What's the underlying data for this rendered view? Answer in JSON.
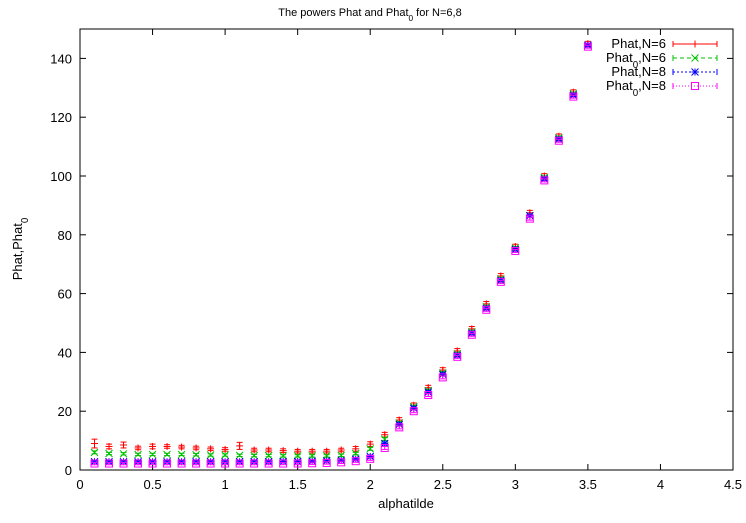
{
  "chart_data": {
    "type": "scatter",
    "title": "The powers Phat and Phat_0 for N=6,8",
    "xlabel": "alphatilde",
    "ylabel": "Phat,Phat_0",
    "xlim": [
      0,
      4.5
    ],
    "ylim": [
      0,
      150
    ],
    "xticks": [
      "0",
      "0.5",
      "1",
      "1.5",
      "2",
      "2.5",
      "3",
      "3.5",
      "4",
      "4.5"
    ],
    "yticks": [
      "0",
      "20",
      "40",
      "60",
      "80",
      "100",
      "120",
      "140"
    ],
    "grid": false,
    "legend_position": "top-right",
    "x": [
      0.1,
      0.2,
      0.3,
      0.4,
      0.5,
      0.6,
      0.7,
      0.8,
      0.9,
      1.0,
      1.1,
      1.2,
      1.3,
      1.4,
      1.5,
      1.6,
      1.7,
      1.8,
      1.9,
      2.0,
      2.1,
      2.2,
      2.3,
      2.4,
      2.5,
      2.6,
      2.7,
      2.8,
      2.9,
      3.0,
      3.1,
      3.2,
      3.3,
      3.4,
      3.5
    ],
    "series": [
      {
        "name": "Phat,N=6",
        "color": "#ff0000",
        "marker": "plus",
        "values": [
          9.0,
          8.0,
          8.5,
          7.5,
          8.0,
          8.0,
          7.8,
          7.5,
          7.2,
          7.0,
          8.2,
          6.8,
          6.8,
          6.6,
          6.4,
          6.4,
          6.4,
          6.8,
          7.2,
          8.8,
          12.0,
          17.0,
          22.0,
          28.0,
          34.0,
          40.5,
          48.0,
          56.5,
          66.0,
          76.0,
          87.5,
          100.0,
          113.5,
          128.5,
          145.0
        ],
        "errors": [
          1.5,
          0.8,
          1.0,
          0.6,
          0.8,
          0.6,
          0.6,
          0.6,
          0.6,
          0.6,
          1.2,
          0.6,
          0.6,
          0.6,
          0.6,
          0.6,
          0.6,
          0.6,
          0.8,
          0.8,
          0.8,
          0.8,
          0.8,
          0.8,
          0.8,
          0.8,
          0.8,
          0.8,
          0.8,
          0.8,
          0.8,
          0.8,
          0.8,
          0.8,
          0.8
        ]
      },
      {
        "name": "Phat_0,N=6",
        "color": "#00c000",
        "marker": "cross",
        "values": [
          6.0,
          5.6,
          5.5,
          5.3,
          5.3,
          5.3,
          5.3,
          5.2,
          5.1,
          5.1,
          5.0,
          4.9,
          4.9,
          4.8,
          4.8,
          4.8,
          4.8,
          5.0,
          5.6,
          7.2,
          10.5,
          16.0,
          21.5,
          27.0,
          33.0,
          39.5,
          47.0,
          55.5,
          65.0,
          75.5,
          86.5,
          99.5,
          113.0,
          128.0,
          144.5
        ],
        "errors": [
          0.5,
          0.4,
          0.4,
          0.4,
          0.4,
          0.4,
          0.4,
          0.4,
          0.4,
          0.4,
          0.4,
          0.4,
          0.4,
          0.4,
          0.4,
          0.4,
          0.4,
          0.4,
          0.4,
          0.5,
          0.5,
          0.5,
          0.5,
          0.5,
          0.5,
          0.5,
          0.5,
          0.5,
          0.5,
          0.5,
          0.5,
          0.5,
          0.5,
          0.5,
          0.5
        ]
      },
      {
        "name": "Phat,N=8",
        "color": "#0000ff",
        "marker": "star",
        "values": [
          2.8,
          2.8,
          2.8,
          2.8,
          2.8,
          2.8,
          2.8,
          2.8,
          2.8,
          2.8,
          2.8,
          2.8,
          2.8,
          2.9,
          2.9,
          3.0,
          3.1,
          3.3,
          3.7,
          4.6,
          9.0,
          15.5,
          21.0,
          26.5,
          32.5,
          39.0,
          46.5,
          55.0,
          64.5,
          75.0,
          86.5,
          99.0,
          112.5,
          127.5,
          144.5
        ],
        "errors": [
          0.4,
          0.4,
          0.4,
          0.4,
          0.4,
          0.4,
          0.4,
          0.4,
          0.4,
          0.4,
          0.4,
          0.4,
          0.4,
          0.4,
          0.4,
          0.4,
          0.4,
          0.4,
          0.4,
          0.5,
          0.5,
          0.5,
          0.5,
          0.5,
          0.5,
          0.5,
          0.5,
          0.5,
          0.5,
          0.5,
          0.5,
          0.5,
          0.5,
          0.5,
          0.5
        ]
      },
      {
        "name": "Phat_0,N=8",
        "color": "#ff00ff",
        "marker": "square",
        "values": [
          2.2,
          2.2,
          2.2,
          2.2,
          2.2,
          2.2,
          2.2,
          2.2,
          2.2,
          2.2,
          2.2,
          2.2,
          2.2,
          2.2,
          2.2,
          2.3,
          2.4,
          2.6,
          3.0,
          3.8,
          7.5,
          14.5,
          20.0,
          25.5,
          31.5,
          38.5,
          46.0,
          54.5,
          64.0,
          74.5,
          85.5,
          98.5,
          112.0,
          127.0,
          144.0
        ],
        "errors": [
          0.4,
          0.4,
          0.4,
          0.4,
          0.4,
          0.4,
          0.4,
          0.4,
          0.4,
          0.4,
          0.4,
          0.4,
          0.4,
          0.4,
          0.4,
          0.4,
          0.4,
          0.4,
          0.4,
          0.5,
          0.5,
          0.5,
          0.5,
          0.5,
          0.5,
          0.5,
          0.5,
          0.5,
          0.5,
          0.5,
          0.5,
          0.5,
          0.5,
          0.5,
          0.5
        ]
      }
    ]
  }
}
